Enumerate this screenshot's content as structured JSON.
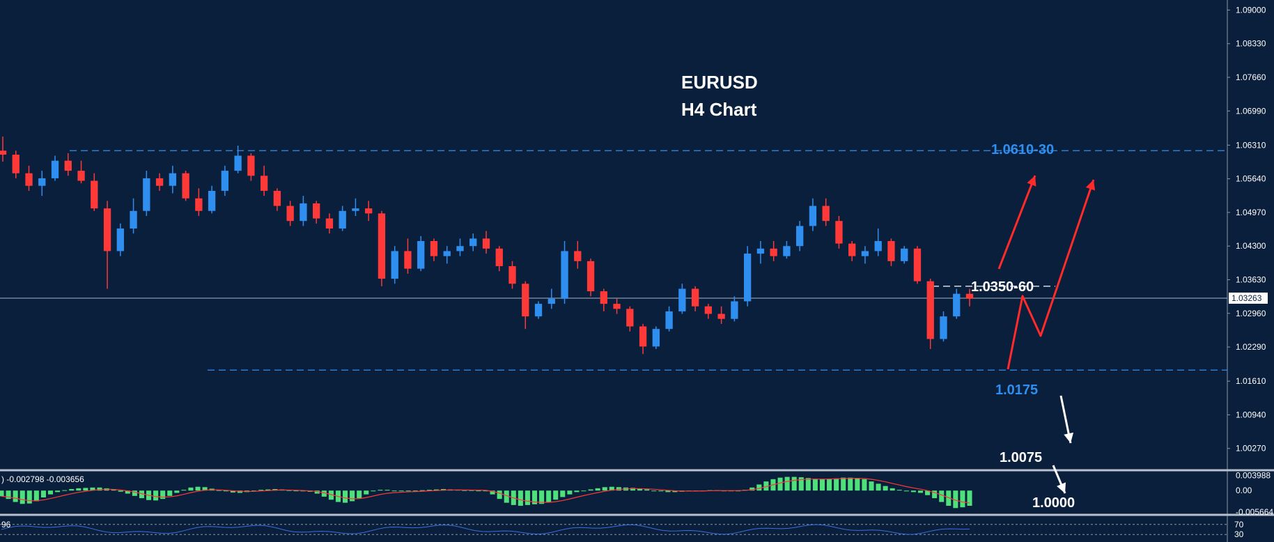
{
  "chart_data": {
    "type": "candlestick",
    "title": "EURUSD",
    "subtitle": "H4 Chart",
    "colors": {
      "background": "#0a1f3c",
      "bull": "#2f8ff0",
      "bear": "#ff3838",
      "level_line": "#2f8ff0",
      "level_label": "#2f8ff0",
      "arrow_bull": "#ff2a2a",
      "arrow_bear": "#ffffff",
      "macd_hist": "#4ee07a",
      "macd_signal": "#ff3838",
      "rsi_line": "#3a6fe0",
      "axis_text": "#ffffff",
      "current_price_box": "#ffffff"
    },
    "y_axis": {
      "ticks": [
        "1.09000",
        "1.08330",
        "1.07660",
        "1.06990",
        "1.06310",
        "1.05640",
        "1.04970",
        "1.04300",
        "1.03630",
        "1.02960",
        "1.02290",
        "1.01610",
        "1.00940",
        "1.00270"
      ],
      "ylim": [
        0.9985,
        1.092
      ],
      "current_price": "1.03263",
      "current_price_value": 1.03263
    },
    "series": [
      {
        "values": [
          [
            1.062,
            1.0648,
            1.0598,
            1.0612
          ],
          [
            1.0612,
            1.062,
            1.0565,
            1.0575
          ],
          [
            1.0575,
            1.059,
            1.054,
            1.055
          ],
          [
            1.055,
            1.058,
            1.053,
            1.0565
          ],
          [
            1.0565,
            1.061,
            1.056,
            1.06
          ],
          [
            1.06,
            1.0615,
            1.057,
            1.058
          ],
          [
            1.058,
            1.06,
            1.0555,
            1.056
          ],
          [
            1.056,
            1.0575,
            1.05,
            1.0505
          ],
          [
            1.0505,
            1.052,
            1.0345,
            1.042
          ],
          [
            1.042,
            1.0475,
            1.041,
            1.0465
          ],
          [
            1.0465,
            1.0525,
            1.0455,
            1.05
          ],
          [
            1.05,
            1.058,
            1.049,
            1.0565
          ],
          [
            1.0565,
            1.0575,
            1.054,
            1.055
          ],
          [
            1.055,
            1.059,
            1.0535,
            1.0575
          ],
          [
            1.0575,
            1.058,
            1.052,
            1.0525
          ],
          [
            1.0525,
            1.0545,
            1.049,
            1.05
          ],
          [
            1.05,
            1.055,
            1.0495,
            1.054
          ],
          [
            1.054,
            1.059,
            1.053,
            1.058
          ],
          [
            1.058,
            1.063,
            1.0575,
            1.061
          ],
          [
            1.061,
            1.0615,
            1.056,
            1.057
          ],
          [
            1.057,
            1.059,
            1.053,
            1.054
          ],
          [
            1.054,
            1.0545,
            1.05,
            1.051
          ],
          [
            1.051,
            1.052,
            1.047,
            1.048
          ],
          [
            1.048,
            1.053,
            1.047,
            1.0515
          ],
          [
            1.0515,
            1.052,
            1.0475,
            1.0485
          ],
          [
            1.0485,
            1.0495,
            1.0455,
            1.0465
          ],
          [
            1.0465,
            1.051,
            1.046,
            1.05
          ],
          [
            1.05,
            1.0525,
            1.049,
            1.0505
          ],
          [
            1.0505,
            1.052,
            1.048,
            1.0495
          ],
          [
            1.0495,
            1.05,
            1.035,
            1.0365
          ],
          [
            1.0365,
            1.043,
            1.0355,
            1.042
          ],
          [
            1.042,
            1.0445,
            1.0375,
            1.0385
          ],
          [
            1.0385,
            1.045,
            1.038,
            1.044
          ],
          [
            1.044,
            1.0445,
            1.04,
            1.041
          ],
          [
            1.041,
            1.043,
            1.0395,
            1.042
          ],
          [
            1.042,
            1.0445,
            1.041,
            1.043
          ],
          [
            1.043,
            1.0455,
            1.042,
            1.0445
          ],
          [
            1.0445,
            1.046,
            1.0415,
            1.0425
          ],
          [
            1.0425,
            1.043,
            1.038,
            1.039
          ],
          [
            1.039,
            1.04,
            1.0345,
            1.0355
          ],
          [
            1.0355,
            1.036,
            1.0265,
            1.029
          ],
          [
            1.029,
            1.032,
            1.0285,
            1.0315
          ],
          [
            1.0315,
            1.0345,
            1.0305,
            1.0325
          ],
          [
            1.0325,
            1.044,
            1.0315,
            1.042
          ],
          [
            1.042,
            1.044,
            1.0385,
            1.04
          ],
          [
            1.04,
            1.0405,
            1.033,
            1.034
          ],
          [
            1.034,
            1.0345,
            1.03,
            1.0315
          ],
          [
            1.0315,
            1.0325,
            1.0295,
            1.0305
          ],
          [
            1.0305,
            1.031,
            1.026,
            1.027
          ],
          [
            1.027,
            1.0275,
            1.0215,
            1.023
          ],
          [
            1.023,
            1.027,
            1.0225,
            1.0265
          ],
          [
            1.0265,
            1.031,
            1.026,
            1.03
          ],
          [
            1.03,
            1.0355,
            1.0295,
            1.0345
          ],
          [
            1.0345,
            1.035,
            1.03,
            1.031
          ],
          [
            1.031,
            1.0315,
            1.0285,
            1.0295
          ],
          [
            1.0295,
            1.031,
            1.0275,
            1.0285
          ],
          [
            1.0285,
            1.033,
            1.028,
            1.032
          ],
          [
            1.032,
            1.043,
            1.031,
            1.0415
          ],
          [
            1.0415,
            1.044,
            1.0395,
            1.0425
          ],
          [
            1.0425,
            1.044,
            1.04,
            1.041
          ],
          [
            1.041,
            1.044,
            1.0405,
            1.043
          ],
          [
            1.043,
            1.048,
            1.042,
            1.047
          ],
          [
            1.047,
            1.0525,
            1.046,
            1.051
          ],
          [
            1.051,
            1.0525,
            1.047,
            1.048
          ],
          [
            1.048,
            1.049,
            1.0425,
            1.0435
          ],
          [
            1.0435,
            1.044,
            1.04,
            1.041
          ],
          [
            1.041,
            1.043,
            1.0395,
            1.042
          ],
          [
            1.042,
            1.0465,
            1.041,
            1.044
          ],
          [
            1.044,
            1.0445,
            1.039,
            1.04
          ],
          [
            1.04,
            1.043,
            1.0395,
            1.0425
          ],
          [
            1.0425,
            1.043,
            1.0355,
            1.036
          ],
          [
            1.036,
            1.0365,
            1.0225,
            1.0245
          ],
          [
            1.0245,
            1.03,
            1.024,
            1.029
          ],
          [
            1.029,
            1.0345,
            1.0285,
            1.0335
          ],
          [
            1.0335,
            1.0345,
            1.031,
            1.0325
          ]
        ]
      }
    ],
    "levels": [
      {
        "label": "1.0610-30",
        "value": 1.062,
        "style": "dashed"
      },
      {
        "label": "1.0350-60",
        "value": 1.035,
        "style": "dashed-short"
      },
      {
        "label": "1.0175",
        "value": 1.0183,
        "style": "dashed"
      },
      {
        "label": "1.0075",
        "value": 1.005,
        "style": "arrow-target"
      },
      {
        "label": "1.0000",
        "value": 0.999,
        "style": "arrow-target"
      }
    ],
    "macd": {
      "label": ") -0.002798 -0.003656",
      "ticks": [
        "0.003988",
        "0.00",
        "-0.005664"
      ],
      "ylim": [
        -0.0062,
        0.0048
      ],
      "histogram": [
        -0.0015,
        -0.0022,
        -0.003,
        -0.0035,
        -0.0034,
        -0.0028,
        -0.0018,
        -0.001,
        -0.0004,
        0.0001,
        0.0004,
        0.0006,
        0.0007,
        0.0008,
        0.0008,
        0.0006,
        0.0002,
        -0.0003,
        -0.0008,
        -0.0014,
        -0.002,
        -0.0025,
        -0.0026,
        -0.0022,
        -0.0014,
        -0.0006,
        0.0002,
        0.0008,
        0.001,
        0.0009,
        0.0005,
        0.0001,
        -0.0002,
        -0.0005,
        -0.0006,
        -0.0004,
        -0.0001,
        0.0002,
        0.0003,
        0.0004,
        0.0003,
        0.0001,
        -0.0001,
        -0.0002,
        -0.0003,
        -0.0008,
        -0.0016,
        -0.0024,
        -0.003,
        -0.0032,
        -0.0028,
        -0.002,
        -0.001,
        -0.0002,
        0.0002,
        0.0002,
        0.0,
        -0.0001,
        -0.0001,
        0.0,
        0.0001,
        0.0002,
        0.0003,
        0.0004,
        0.0003,
        0.0002,
        0.0001,
        0.0001,
        0.0,
        0.0,
        -0.001,
        -0.0022,
        -0.0032,
        -0.0038,
        -0.004,
        -0.0038,
        -0.0036,
        -0.0035,
        -0.003,
        -0.0024,
        -0.0017,
        -0.001,
        -0.0004,
        0.0,
        0.0003,
        0.0006,
        0.0009,
        0.001,
        0.0009,
        0.0008,
        0.0007,
        0.0005,
        0.0003,
        0.0,
        -0.0002,
        -0.0004,
        -0.0004,
        -0.0003,
        -0.0002,
        -0.0001,
        0.0,
        0.0001,
        0.0001,
        0.0,
        0.0,
        0.0,
        0.0002,
        0.0008,
        0.0016,
        0.0024,
        0.003,
        0.0034,
        0.0036,
        0.0036,
        0.0035,
        0.0033,
        0.0031,
        0.003,
        0.0031,
        0.0032,
        0.0034,
        0.0034,
        0.0032,
        0.003,
        0.0024,
        0.0018,
        0.0012,
        0.0006,
        0.0002,
        -0.0002,
        -0.0004,
        -0.0006,
        -0.0012,
        -0.002,
        -0.003,
        -0.004,
        -0.0046,
        -0.0044,
        -0.004
      ]
    },
    "rsi": {
      "label": "96",
      "ticks": [
        "70",
        "30"
      ]
    }
  }
}
